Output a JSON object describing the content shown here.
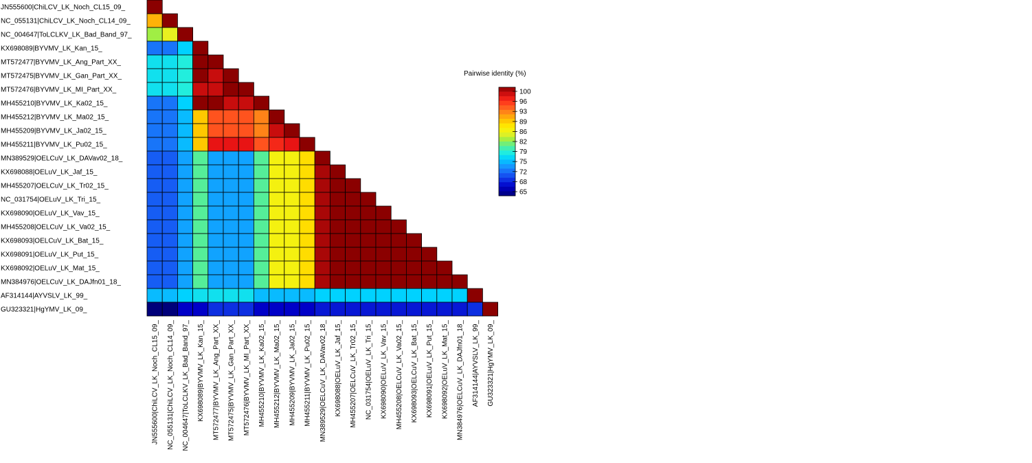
{
  "chart_data": {
    "type": "heatmap",
    "title": "",
    "xlabel": "",
    "ylabel": "",
    "sequences": [
      "JN555600|ChiLCV_LK_Noch_CL15_09_",
      "NC_055131|ChiLCV_LK_Noch_CL14_09_",
      "NC_004647|ToLCLKV_LK_Bad_Band_97_",
      "KX698089|BYVMV_LK_Kan_15_",
      "MT572477|BYVMV_LK_Ang_Part_XX_",
      "MT572475|BYVMV_LK_Gan_Part_XX_",
      "MT572476|BYVMV_LK_MI_Part_XX_",
      "MH455210|BYVMV_LK_Ka02_15_",
      "MH455212|BYVMV_LK_Ma02_15_",
      "MH455209|BYVMV_LK_Ja02_15_",
      "MH455211|BYVMV_LK_Pu02_15_",
      "MN389529|OELCuV_LK_DAVav02_18_",
      "KX698088|OELuV_LK_Jaf_15_",
      "MH455207|OELCuV_LK_Tr02_15_",
      "NC_031754|OELuV_LK_Tri_15_",
      "KX698090|OELuV_LK_Vav_15_",
      "MH455208|OELCuV_LK_Va02_15_",
      "KX698093|OELCuV_LK_Bat_15_",
      "KX698091|OELuV_LK_Put_15_",
      "KX698092|OELuV_LK_Mat_15_",
      "MN384976|OELCuV_LK_DAJfn01_18_",
      "AF314144|AYVSLV_LK_99_",
      "GU323321|HgYMV_LK_09_"
    ],
    "matrix": [
      [
        100
      ],
      [
        90,
        100
      ],
      [
        83,
        85,
        100
      ],
      [
        73,
        73,
        77,
        100
      ],
      [
        78,
        78,
        79,
        100,
        100
      ],
      [
        78,
        78,
        79,
        100,
        98,
        100
      ],
      [
        78,
        78,
        79,
        98,
        98,
        100,
        100
      ],
      [
        73,
        73,
        77,
        100,
        100,
        98,
        98,
        100
      ],
      [
        73,
        73,
        76,
        89,
        94,
        94,
        94,
        92,
        100
      ],
      [
        73,
        73,
        76,
        89,
        94,
        94,
        94,
        92,
        98,
        100
      ],
      [
        73,
        73,
        76,
        89,
        97,
        97,
        97,
        94,
        96,
        97,
        100
      ],
      [
        72,
        72,
        75,
        81,
        75,
        75,
        75,
        81,
        86,
        86,
        88,
        100
      ],
      [
        72,
        72,
        75,
        81,
        75,
        75,
        75,
        81,
        86,
        86,
        88,
        99,
        100
      ],
      [
        72,
        72,
        75,
        81,
        75,
        75,
        75,
        81,
        86,
        86,
        88,
        99,
        100,
        100
      ],
      [
        72,
        72,
        75,
        81,
        75,
        75,
        75,
        81,
        86,
        86,
        88,
        99,
        100,
        100,
        100
      ],
      [
        72,
        72,
        75,
        81,
        75,
        75,
        75,
        81,
        86,
        86,
        88,
        99,
        100,
        100,
        100,
        100
      ],
      [
        72,
        72,
        75,
        81,
        75,
        75,
        75,
        81,
        86,
        86,
        88,
        99,
        100,
        100,
        100,
        100,
        100
      ],
      [
        72,
        72,
        75,
        81,
        75,
        75,
        75,
        81,
        86,
        86,
        88,
        99,
        100,
        100,
        100,
        100,
        100,
        100
      ],
      [
        72,
        72,
        75,
        81,
        75,
        75,
        75,
        81,
        86,
        86,
        88,
        99,
        100,
        100,
        100,
        100,
        100,
        100,
        100
      ],
      [
        72,
        72,
        75,
        81,
        75,
        75,
        75,
        81,
        86,
        86,
        88,
        99,
        100,
        100,
        100,
        100,
        100,
        100,
        100,
        100
      ],
      [
        72,
        72,
        75,
        81,
        75,
        75,
        75,
        81,
        86,
        86,
        88,
        99,
        100,
        100,
        100,
        100,
        100,
        100,
        100,
        100,
        100
      ],
      [
        76,
        76,
        77,
        78,
        78,
        78,
        78,
        76,
        76,
        76,
        76,
        77,
        77,
        77,
        77,
        77,
        77,
        77,
        77,
        77,
        77,
        100
      ],
      [
        65,
        65,
        68,
        68,
        70,
        70,
        70,
        68,
        68,
        68,
        68,
        69,
        69,
        69,
        69,
        69,
        69,
        69,
        69,
        69,
        69,
        70,
        100
      ]
    ],
    "legend": {
      "title": "Pairwise identity (%)",
      "placement": "right",
      "ticks": [
        100,
        96,
        93,
        89,
        86,
        82,
        79,
        75,
        72,
        68,
        65
      ],
      "min": 65,
      "max": 100,
      "color_stops": [
        [
          65,
          "#00007a"
        ],
        [
          68,
          "#0000c8"
        ],
        [
          71,
          "#1446ee"
        ],
        [
          74,
          "#1a8cff"
        ],
        [
          77,
          "#00d2ff"
        ],
        [
          79,
          "#22eedd"
        ],
        [
          81,
          "#55ee99"
        ],
        [
          83,
          "#a0ee44"
        ],
        [
          85,
          "#e8f020"
        ],
        [
          87,
          "#fff200"
        ],
        [
          89,
          "#ffc800"
        ],
        [
          91,
          "#ff9c10"
        ],
        [
          93,
          "#ff6a20"
        ],
        [
          95,
          "#ff3c1c"
        ],
        [
          97,
          "#e81414"
        ],
        [
          98.5,
          "#b80a0a"
        ],
        [
          100,
          "#8b0000"
        ]
      ]
    }
  }
}
